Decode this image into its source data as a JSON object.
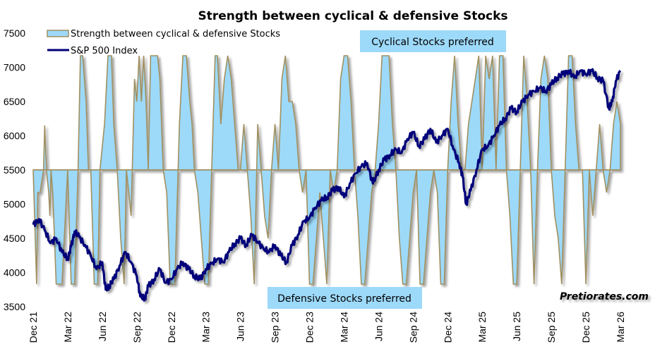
{
  "chart_data": {
    "type": "line",
    "title": "Strength between cyclical & defensive Stocks",
    "xlabel": "",
    "ylabel": "",
    "ylim": [
      3500,
      7500
    ],
    "yticks": [
      "7500",
      "7000",
      "6500",
      "6000",
      "5500",
      "5000",
      "4500",
      "4000",
      "3500"
    ],
    "ytick_values": [
      7500,
      7000,
      6500,
      6000,
      5500,
      5000,
      4500,
      4000,
      3500
    ],
    "xticks": [
      "Dec 21",
      "Mar 22",
      "Jun 22",
      "Sep 22",
      "Dec 22",
      "Mar 23",
      "Jun 23",
      "Sep 23",
      "Dec 23",
      "Mar 24",
      "Jun 24",
      "Sep 24",
      "Dec 24",
      "Mar 25",
      "Jun 25",
      "Sep 25",
      "Dec 25",
      "Mar 26"
    ],
    "x_range_months": [
      0,
      51
    ],
    "grid": false,
    "legend_position": "top-left",
    "legend": [
      {
        "name": "Strength between cyclical & defensive Stocks",
        "style": "area",
        "color": "#9dd9f9",
        "edge": "#a09060"
      },
      {
        "name": "S&P 500 Index",
        "style": "line",
        "color": "#00007a"
      }
    ],
    "baseline": 5500,
    "indicator_levels": {
      "max": 7170,
      "min": 3830
    },
    "series": [
      {
        "name": "S&P 500 Index",
        "x_months": [
          0,
          0.5,
          1,
          1.5,
          2,
          2.5,
          3,
          3.3,
          3.6,
          4,
          4.5,
          5,
          5.5,
          6,
          6.3,
          6.6,
          7,
          7.5,
          8,
          8.5,
          9,
          9.3,
          9.7,
          10,
          10.5,
          11,
          11.5,
          12,
          12.5,
          13,
          13.5,
          14,
          14.5,
          15,
          15.5,
          16,
          16.5,
          17,
          17.5,
          18,
          18.5,
          19,
          19.5,
          20,
          20.5,
          21,
          21.5,
          22,
          22.5,
          23,
          23.5,
          24,
          24.5,
          25,
          25.5,
          26,
          26.5,
          27,
          27.5,
          28,
          28.5,
          29,
          29.5,
          30,
          30.5,
          31,
          31.5,
          32,
          32.5,
          33,
          33.5,
          34,
          34.5,
          35,
          35.5,
          36,
          36.5,
          37,
          37.3,
          37.6,
          38,
          38.5,
          39,
          39.5,
          40,
          40.5,
          41,
          41.5,
          42,
          42.5,
          43,
          43.5,
          44,
          44.5,
          45,
          45.5,
          46,
          46.5,
          47,
          47.5,
          48,
          48.5,
          49,
          49.5,
          50,
          50.3,
          50.6,
          51
        ],
        "values": [
          4700,
          4780,
          4620,
          4430,
          4500,
          4300,
          4200,
          4380,
          4600,
          4520,
          4400,
          4250,
          4050,
          4150,
          3750,
          3800,
          3900,
          4100,
          4300,
          4150,
          3950,
          3650,
          3620,
          3800,
          3900,
          4050,
          3850,
          3900,
          4050,
          4150,
          4050,
          3950,
          3900,
          4050,
          4130,
          4200,
          4150,
          4300,
          4420,
          4500,
          4400,
          4550,
          4450,
          4350,
          4300,
          4400,
          4250,
          4150,
          4400,
          4550,
          4750,
          4800,
          4950,
          5050,
          5100,
          5200,
          5250,
          5100,
          5300,
          5450,
          5550,
          5600,
          5300,
          5500,
          5650,
          5720,
          5800,
          5750,
          5950,
          6050,
          5850,
          5950,
          6100,
          5900,
          6000,
          6100,
          5800,
          5600,
          5400,
          5000,
          5200,
          5500,
          5800,
          5850,
          6000,
          6150,
          6250,
          6400,
          6350,
          6500,
          6600,
          6650,
          6700,
          6650,
          6750,
          6850,
          6900,
          6950,
          6850,
          6950,
          6900,
          6950,
          6850,
          6800,
          6400,
          6500,
          6800,
          6950
        ]
      },
      {
        "name": "Strength between cyclical & defensive Stocks",
        "x_months": [
          0,
          0.3,
          0.4,
          0.6,
          0.9,
          1.0,
          1.15,
          1.35,
          1.45,
          1.55,
          1.7,
          2.0,
          2.5,
          3.0,
          3.3,
          3.6,
          3.9,
          4.1,
          4.3,
          4.6,
          4.8,
          5.0,
          5.3,
          5.6,
          5.8,
          6.2,
          6.5,
          6.8,
          7.0,
          7.3,
          7.6,
          7.9,
          8.1,
          8.3,
          8.5,
          8.8,
          9.0,
          9.2,
          9.4,
          9.6,
          9.8,
          10.0,
          10.2,
          10.5,
          10.8,
          11.0,
          11.3,
          11.6,
          11.9,
          12.3,
          12.7,
          13.0,
          13.3,
          13.6,
          13.8,
          14.0,
          14.3,
          14.6,
          14.9,
          15.2,
          15.5,
          15.8,
          16.0,
          16.3,
          16.6,
          16.9,
          17.2,
          17.5,
          17.8,
          18.0,
          18.3,
          18.6,
          18.9,
          19.2,
          19.5,
          19.8,
          20.1,
          20.4,
          20.7,
          21.0,
          21.3,
          21.6,
          21.9,
          22.2,
          22.5,
          22.8,
          23.1,
          23.4,
          23.7,
          24.0,
          24.3,
          24.6,
          24.9,
          25.2,
          25.5,
          25.8,
          26.1,
          26.4,
          26.7,
          27.0,
          27.3,
          27.6,
          27.9,
          28.2,
          28.5,
          28.8,
          29.1,
          29.4,
          29.7,
          30.0,
          30.3,
          30.6,
          30.9,
          31.2,
          31.5,
          31.8,
          32.1,
          32.4,
          32.7,
          33.0,
          33.3,
          33.6,
          33.9,
          34.2,
          34.5,
          34.8,
          35.1,
          35.4,
          35.7,
          36.0,
          36.3,
          36.6,
          36.9,
          37.2,
          37.5,
          37.8,
          38.1,
          38.4,
          38.7,
          39.0,
          39.3,
          39.6,
          39.9,
          40.2,
          40.5,
          40.8,
          41.1,
          41.4,
          41.7,
          42.0,
          42.3,
          42.6,
          42.9,
          43.2,
          43.5,
          43.8,
          44.1,
          44.4,
          44.7,
          45.0,
          45.3,
          45.6,
          45.9,
          46.2,
          46.5,
          46.8,
          47.1,
          47.4,
          47.7,
          48.0,
          48.3,
          48.6,
          48.9,
          49.2,
          49.5,
          49.8,
          50.1,
          50.4,
          50.7,
          51.0
        ],
        "values": [
          5500,
          3830,
          5170,
          5170,
          5500,
          6150,
          5500,
          5170,
          4830,
          5500,
          5170,
          3830,
          3830,
          5500,
          3830,
          3830,
          5500,
          7170,
          7170,
          6500,
          5500,
          5500,
          3830,
          3830,
          5500,
          6170,
          7170,
          7170,
          6170,
          5500,
          4500,
          3830,
          5500,
          5170,
          4830,
          6830,
          6500,
          7170,
          6500,
          7170,
          6500,
          5500,
          7170,
          7170,
          7170,
          6830,
          5500,
          5170,
          3830,
          3830,
          6170,
          7170,
          7170,
          6500,
          6170,
          5500,
          5170,
          4500,
          3830,
          3830,
          5500,
          7170,
          7170,
          6170,
          6830,
          7170,
          6830,
          6170,
          5500,
          5500,
          6170,
          5500,
          4830,
          3830,
          6170,
          5500,
          4830,
          4500,
          5500,
          6170,
          5500,
          6830,
          7170,
          6500,
          6500,
          6170,
          5500,
          5170,
          5500,
          3830,
          3830,
          4500,
          5170,
          4500,
          3830,
          5500,
          5170,
          5500,
          6830,
          7170,
          7170,
          6500,
          5500,
          4830,
          3830,
          3830,
          4500,
          5170,
          5500,
          6170,
          7170,
          7170,
          7170,
          6170,
          5500,
          4500,
          3830,
          3830,
          4500,
          5170,
          5500,
          3830,
          3830,
          4500,
          5170,
          5500,
          5170,
          3830,
          3830,
          5500,
          6500,
          7170,
          6170,
          5500,
          5500,
          6170,
          6500,
          6830,
          7170,
          5500,
          7170,
          6830,
          7170,
          5500,
          7170,
          7170,
          5500,
          4830,
          3830,
          3830,
          5500,
          7170,
          6500,
          5500,
          3830,
          5500,
          6830,
          7170,
          6830,
          5500,
          4830,
          4500,
          3830,
          5500,
          7170,
          7170,
          6170,
          5500,
          5500,
          3830,
          5500,
          4830,
          5500,
          6170,
          5500,
          5170,
          5500,
          6170,
          6500,
          6170,
          5500,
          4830,
          3830,
          3830,
          4500,
          5500,
          6170,
          6500
        ]
      }
    ],
    "annotations": [
      {
        "text": "Cyclical Stocks preferred",
        "bg": "#9dd9f9",
        "position": "top-center"
      },
      {
        "text": "Defensive  Stocks preferred",
        "bg": "#9dd9f9",
        "position": "bottom-center"
      },
      {
        "text": "Pretiorates.com",
        "position": "bottom-right"
      }
    ]
  },
  "colors": {
    "area_fill": "#9dd9f9",
    "area_edge": "#a09060",
    "line": "#00007a",
    "annotation_bg": "#9dd9f9"
  }
}
